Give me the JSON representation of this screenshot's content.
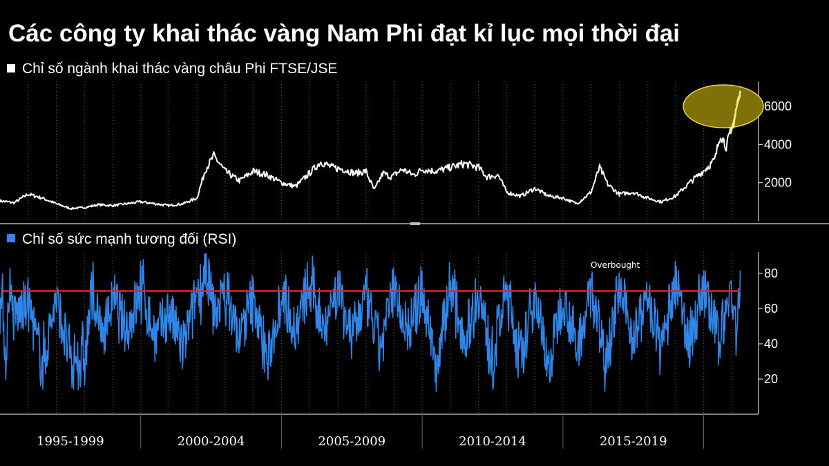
{
  "colors": {
    "background": "#000000",
    "price_line": "#ffffff",
    "rsi_line": "#2f86e8",
    "overbought_line": "#e3242b",
    "highlight_fill": "#7f7108",
    "highlight_stroke": "#e6d64b",
    "highlight_line": "#f2e87a",
    "grid": "#555555"
  },
  "chart_data": [
    {
      "type": "line",
      "title": "Các công ty khai thác vàng Nam Phi đạt kỉ lục mọi thời đại",
      "series": [
        {
          "name": "Chỉ số ngành khai thác vàng châu Phi FTSE/JSE",
          "x": [
            1995.0,
            1995.5,
            1996.0,
            1996.5,
            1997.0,
            1997.5,
            1998.0,
            1998.5,
            1999.0,
            1999.5,
            2000.0,
            2000.5,
            2001.0,
            2001.5,
            2002.0,
            2002.3,
            2002.6,
            2003.0,
            2003.5,
            2004.0,
            2004.5,
            2005.0,
            2005.5,
            2006.0,
            2006.4,
            2006.8,
            2007.2,
            2007.6,
            2008.0,
            2008.3,
            2008.6,
            2008.9,
            2009.3,
            2009.7,
            2010.0,
            2010.5,
            2011.0,
            2011.5,
            2012.0,
            2012.3,
            2012.7,
            2013.0,
            2013.5,
            2014.0,
            2014.5,
            2015.0,
            2015.5,
            2016.0,
            2016.3,
            2016.6,
            2017.0,
            2017.5,
            2018.0,
            2018.5,
            2019.0,
            2019.5,
            2019.9,
            2020.2,
            2020.4,
            2020.6,
            2020.8,
            2021.0,
            2021.1,
            2021.2,
            2021.3
          ],
          "values": [
            1050,
            950,
            1400,
            1200,
            900,
            650,
            700,
            850,
            800,
            900,
            1000,
            900,
            800,
            900,
            1200,
            2700,
            3400,
            2600,
            2100,
            2600,
            2400,
            2000,
            1800,
            2500,
            3100,
            2800,
            2700,
            2500,
            2600,
            1600,
            2500,
            2300,
            2700,
            2400,
            2700,
            2600,
            2800,
            3000,
            2800,
            2300,
            2400,
            1500,
            1300,
            1700,
            1300,
            1200,
            900,
            1500,
            2800,
            1900,
            1400,
            1500,
            1200,
            1000,
            1300,
            2000,
            2500,
            2900,
            3200,
            4600,
            3900,
            4800,
            5400,
            6200,
            6600
          ]
        },
        {
          "name": "Chỉ số sức mạnh tương đối (RSI)",
          "overbought_level": 70,
          "min_observed": 13,
          "max_observed": 91,
          "x": [
            1995.0,
            1995.1,
            1995.2,
            1995.35,
            1995.5,
            1996.0,
            1996.5,
            1997.0,
            1997.5,
            1998.0,
            1998.3,
            1998.6,
            1999.0,
            1999.5,
            2000.0,
            2000.5,
            2001.0,
            2001.5,
            2002.0,
            2002.3,
            2002.6,
            2003.0,
            2003.5,
            2004.0,
            2004.5,
            2005.0,
            2005.5,
            2006.0,
            2006.5,
            2007.0,
            2007.5,
            2008.0,
            2008.5,
            2009.0,
            2009.5,
            2010.0,
            2010.5,
            2011.0,
            2011.5,
            2012.0,
            2012.5,
            2013.0,
            2013.5,
            2014.0,
            2014.5,
            2015.0,
            2015.5,
            2016.0,
            2016.5,
            2017.0,
            2017.5,
            2018.0,
            2018.5,
            2019.0,
            2019.5,
            2020.0,
            2020.5,
            2020.8,
            2021.0,
            2021.15,
            2021.3
          ],
          "values": [
            62,
            68,
            18,
            84,
            55,
            70,
            17,
            74,
            20,
            22,
            80,
            40,
            72,
            45,
            83,
            38,
            62,
            30,
            75,
            91,
            60,
            78,
            40,
            73,
            18,
            80,
            45,
            84,
            50,
            83,
            40,
            72,
            30,
            80,
            45,
            79,
            18,
            82,
            40,
            76,
            20,
            83,
            16,
            80,
            13,
            78,
            30,
            82,
            20,
            78,
            40,
            73,
            30,
            85,
            35,
            83,
            40,
            60,
            85,
            40,
            84
          ]
        }
      ],
      "axes": {
        "top_y": {
          "ticks": [
            2000,
            4000,
            6000
          ],
          "ylim": [
            0,
            7300
          ],
          "position": "right"
        },
        "bottom_y": {
          "ticks": [
            20,
            40,
            60,
            80
          ],
          "ylim": [
            0,
            100
          ],
          "position": "right"
        },
        "x": {
          "xlim": [
            1995.0,
            2021.95
          ],
          "periods": [
            "1995-1999",
            "2000-2004",
            "2005-2009",
            "2010-2014",
            "2015-2019"
          ]
        }
      },
      "annotations": [
        "Overbought"
      ],
      "highlight": {
        "type": "ellipse",
        "center_x": 2020.7,
        "center_value": 6000
      },
      "grid": "vertical-dotted",
      "legend_placement": "top-left"
    }
  ]
}
